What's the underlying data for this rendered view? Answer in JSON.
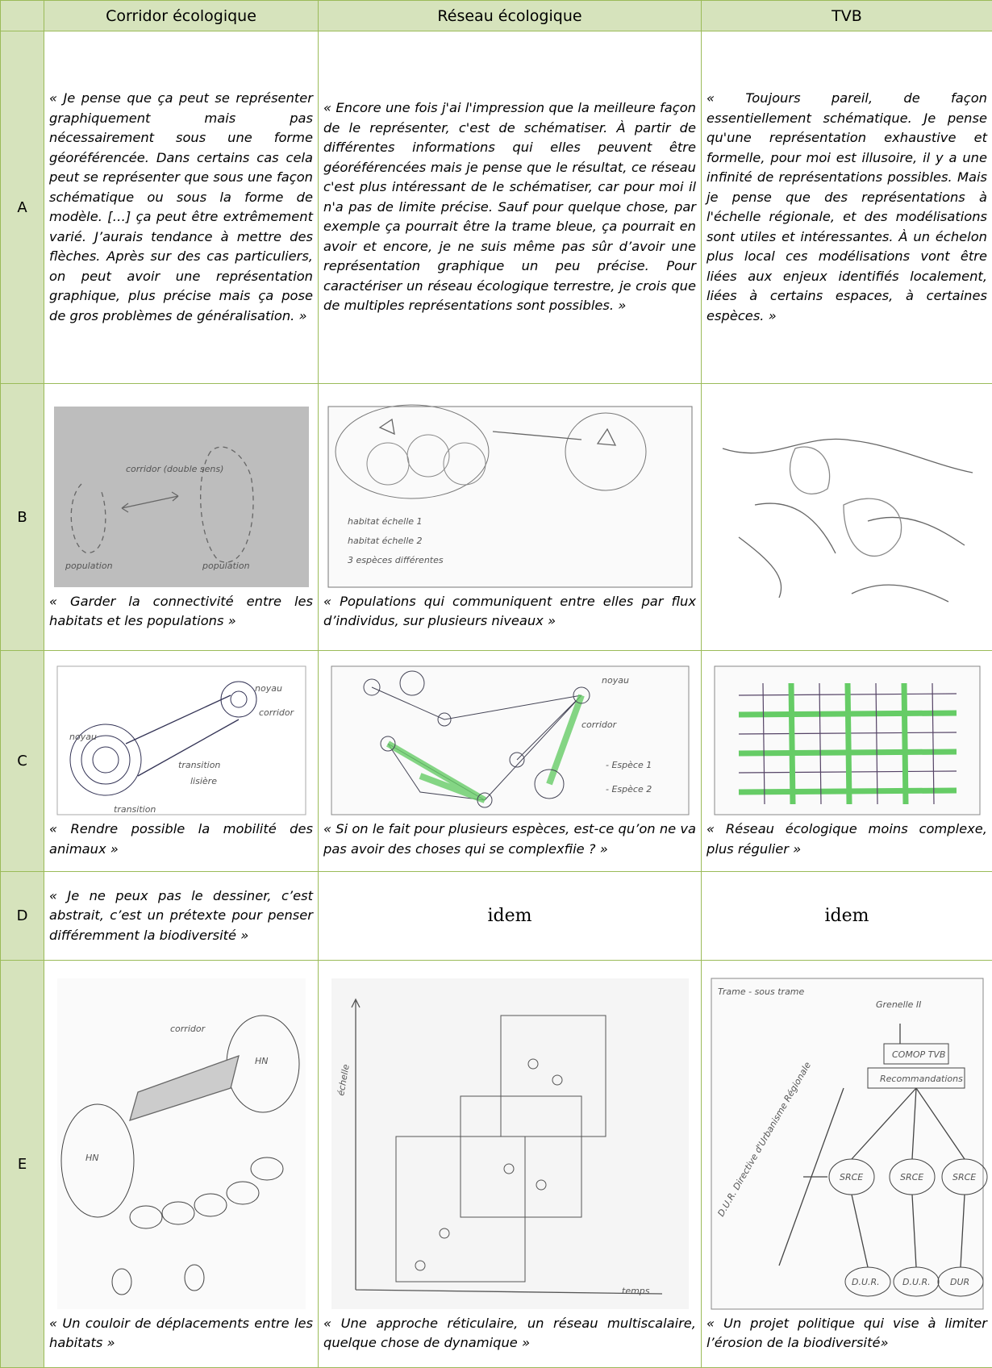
{
  "table": {
    "headers": [
      "Corridor écologique",
      "Réseau écologique",
      "TVB"
    ],
    "rows": [
      {
        "label": "A",
        "cells": [
          {
            "quote": "« Je pense que ça peut se représenter graphiquement mais pas nécessairement sous une forme géoréférencée. Dans certains cas cela peut se représenter que sous une façon schématique ou sous la forme de modèle. […] ça peut être extrêmement varié. J’aurais tendance à mettre des flèches. Après sur des cas particuliers, on peut avoir une représentation graphique, plus précise mais ça pose de gros problèmes de généralisation. »"
          },
          {
            "quote": "« Encore une fois j'ai l'impression que la meilleure façon de le représenter, c'est de schématiser. À partir de différentes informations qui elles peuvent être géoréférencées mais je pense que le résultat, ce réseau c'est plus intéressant de le schématiser, car pour moi il n'a pas de limite précise. Sauf pour quelque chose, par exemple ça pourrait être la trame bleue, ça pourrait en avoir et encore, je ne suis même pas sûr d’avoir une représentation graphique un peu précise. Pour caractériser un réseau écologique terrestre, je crois que de multiples représentations sont possibles. »"
          },
          {
            "quote": "« Toujours pareil, de façon essentiellement schématique. Je pense qu'une représentation exhaustive et formelle, pour moi est illusoire, il y a une infinité de représentations possibles. Mais je pense que des représentations à l'échelle régionale, et des modélisations sont utiles et intéressantes. À un échelon plus local ces modélisations vont être liées aux enjeux identifiés localement, liées à certains espaces, à certaines espèces. »"
          }
        ]
      },
      {
        "label": "B",
        "cells": [
          {
            "sketch_labels": [
              "corridor (double sens)",
              "population",
              "population"
            ],
            "caption": "« Garder la connectivité entre les habitats et les populations »"
          },
          {
            "sketch_labels": [
              "habitat échelle 1",
              "habitat échelle 2",
              "3 espèces différentes"
            ],
            "caption": "« Populations qui communiquent entre elles par flux d’individus, sur plusieurs niveaux »"
          },
          {
            "sketch_labels": []
          }
        ]
      },
      {
        "label": "C",
        "cells": [
          {
            "sketch_labels": [
              "noyau",
              "noyau",
              "corridor",
              "transition",
              "lisière",
              "transition"
            ],
            "caption": "« Rendre possible la mobilité des animaux »"
          },
          {
            "sketch_labels": [
              "noyau",
              "corridor",
              "- Espèce 1",
              "- Espèce 2"
            ],
            "caption": "« Si on le fait pour plusieurs espèces, est-ce qu’on ne va pas avoir des choses qui se complexfiie ? »"
          },
          {
            "sketch_labels": [],
            "caption": "« Réseau écologique moins complexe, plus régulier »"
          }
        ]
      },
      {
        "label": "D",
        "cells": [
          {
            "quote": "« Je ne peux pas le dessiner, c’est abstrait, c’est un prétexte pour penser différemment la biodiversité »"
          },
          {
            "text": "idem"
          },
          {
            "text": "idem"
          }
        ]
      },
      {
        "label": "E",
        "cells": [
          {
            "sketch_labels": [
              "corridor",
              "HN",
              "HN"
            ],
            "caption": "« Un couloir de déplacements entre les habitats »"
          },
          {
            "sketch_labels": [
              "échelle",
              "temps"
            ],
            "caption": "« Une approche réticulaire, un réseau multiscalaire, quelque chose de dynamique »"
          },
          {
            "sketch_labels": [
              "Trame - sous trame",
              "Grenelle II",
              "COMOP TVB",
              "Recommandations",
              "SRCE",
              "SRCE",
              "SRCE",
              "D.U.R.",
              "D.U.R.",
              "DUR",
              "D.U.R. Directive d'Urbanisme Régionale"
            ],
            "caption": "« Un projet politique qui vise à limiter l’érosion de la biodiversité»"
          }
        ]
      }
    ]
  }
}
